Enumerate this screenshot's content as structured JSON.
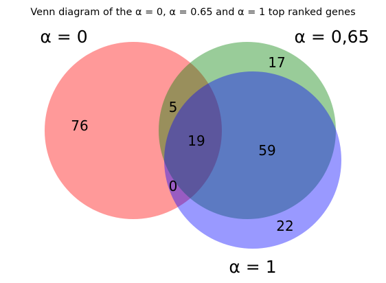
{
  "title": "Venn diagram of the α = 0, α = 0.65 and α = 1 top ranked genes",
  "sets": [
    {
      "id": "a0",
      "label": "α = 0",
      "color": "#ff0000"
    },
    {
      "id": "a065",
      "label": "α = 0,65",
      "color": "#008000"
    },
    {
      "id": "a1",
      "label": "α = 1",
      "color": "#0000ff"
    }
  ],
  "regions": {
    "only_a0": "76",
    "only_a065": "17",
    "only_a1": "22",
    "a0_a065": "5",
    "a0_a1": "0",
    "a065_a1": "59",
    "all": "19"
  },
  "opacity": 0.4
}
